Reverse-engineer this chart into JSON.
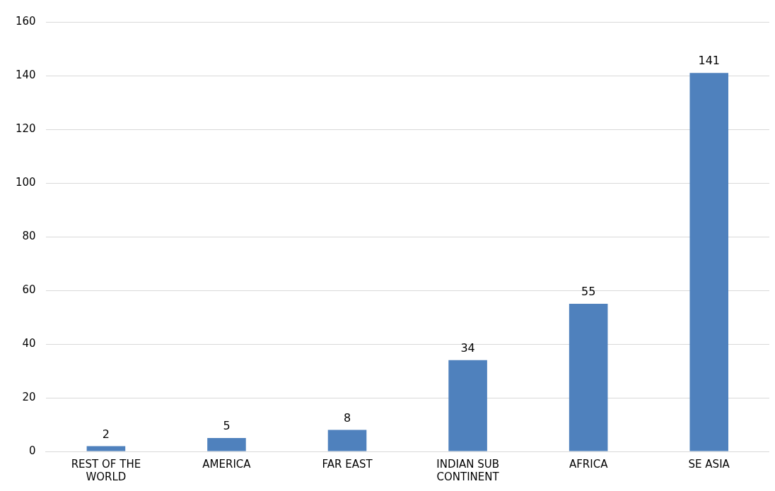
{
  "chart_data": {
    "type": "bar",
    "categories": [
      "REST OF THE WORLD",
      "AMERICA",
      "FAR EAST",
      "INDIAN SUB CONTINENT",
      "AFRICA",
      "SE ASIA"
    ],
    "values": [
      2,
      5,
      8,
      34,
      55,
      141
    ],
    "color": "#4f81bd",
    "ylim": [
      0,
      160
    ],
    "yticks": [
      0,
      20,
      40,
      60,
      80,
      100,
      120,
      140,
      160
    ],
    "grid": "y",
    "data_labels": true,
    "legend": false
  }
}
